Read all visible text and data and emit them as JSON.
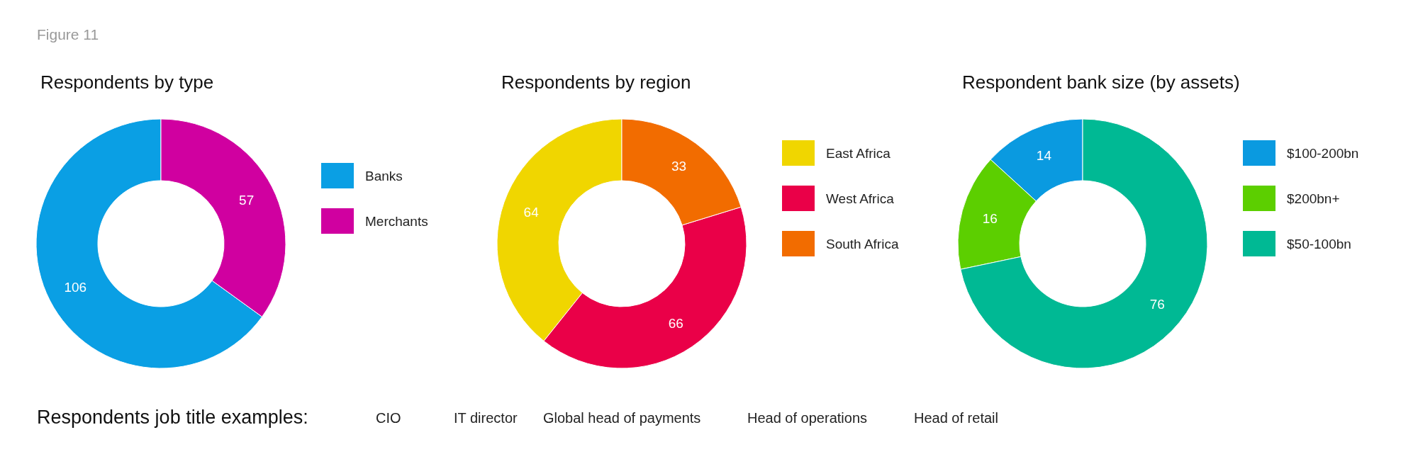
{
  "chart_data": [
    {
      "type": "donut",
      "title": "Respondents by type",
      "annotations": [
        "Figure 11"
      ],
      "categories": [
        "Banks",
        "Merchants"
      ],
      "values": [
        106,
        57
      ],
      "colors": [
        "#0a9fe4",
        "#d000a0"
      ],
      "data_labels": true,
      "legend": "right"
    },
    {
      "type": "donut",
      "title": "Respondents by region",
      "categories": [
        "East Africa",
        "West Africa",
        "South Africa"
      ],
      "values": [
        64,
        66,
        33
      ],
      "colors": [
        "#f0d600",
        "#ea0048",
        "#f26c00"
      ],
      "data_labels": true,
      "legend": "right"
    },
    {
      "type": "donut",
      "title": "Respondent bank size (by assets)",
      "categories": [
        "$100-200bn",
        "$200bn+",
        "$50-100bn"
      ],
      "values": [
        14,
        16,
        76
      ],
      "colors": [
        "#0a9ae0",
        "#5ccf00",
        "#00b994"
      ],
      "data_labels": true,
      "legend": "right"
    },
    {
      "type": "other",
      "title": "Respondents job title examples:",
      "annotations": [
        "CIO",
        "IT director",
        "Global head of payments",
        "Head of operations",
        "Head of retail"
      ]
    }
  ]
}
